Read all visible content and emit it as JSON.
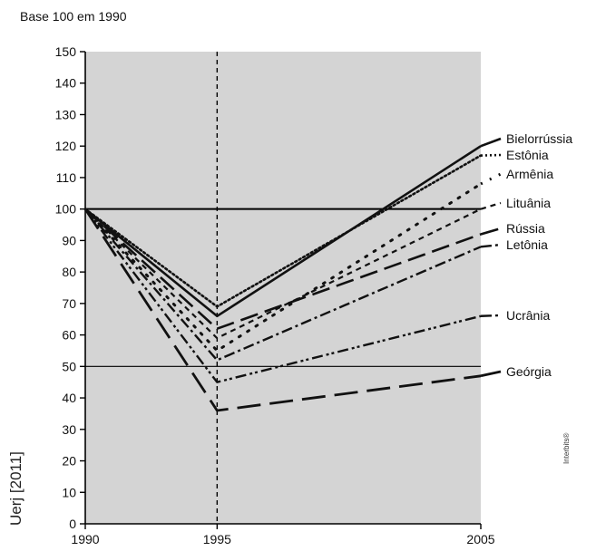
{
  "chart_data": {
    "type": "line",
    "subtitle": "Base 100 em 1990",
    "source_note": "Uerj [2011]",
    "credit": "Interbits®",
    "x": [
      1990,
      1995,
      2005
    ],
    "x_ticks": [
      "1990",
      "1995",
      "2005"
    ],
    "ylim": [
      0,
      150
    ],
    "y_ticks": [
      0,
      10,
      20,
      30,
      40,
      50,
      60,
      70,
      80,
      90,
      100,
      110,
      120,
      130,
      140,
      150
    ],
    "reference_lines": [
      100,
      50
    ],
    "vertical_marker": 1995,
    "series": [
      {
        "name": "Bielorrússia",
        "values": [
          100,
          66,
          120
        ],
        "style": "solid"
      },
      {
        "name": "Estônia",
        "values": [
          100,
          69,
          117
        ],
        "style": "dotted"
      },
      {
        "name": "Armênia",
        "values": [
          100,
          55,
          108
        ],
        "style": "sparse-dots"
      },
      {
        "name": "Lituânia",
        "values": [
          100,
          59,
          100
        ],
        "style": "short-dash"
      },
      {
        "name": "Rússia",
        "values": [
          100,
          62,
          92
        ],
        "style": "long-dash"
      },
      {
        "name": "Letônia",
        "values": [
          100,
          52,
          88
        ],
        "style": "dash-dot"
      },
      {
        "name": "Ucrânia",
        "values": [
          100,
          45,
          66
        ],
        "style": "dash-dot-dot"
      },
      {
        "name": "Geórgia",
        "values": [
          100,
          36,
          47
        ],
        "style": "extra-long-dash"
      }
    ],
    "grid": false,
    "legend_placement": "right-end-of-lines"
  }
}
